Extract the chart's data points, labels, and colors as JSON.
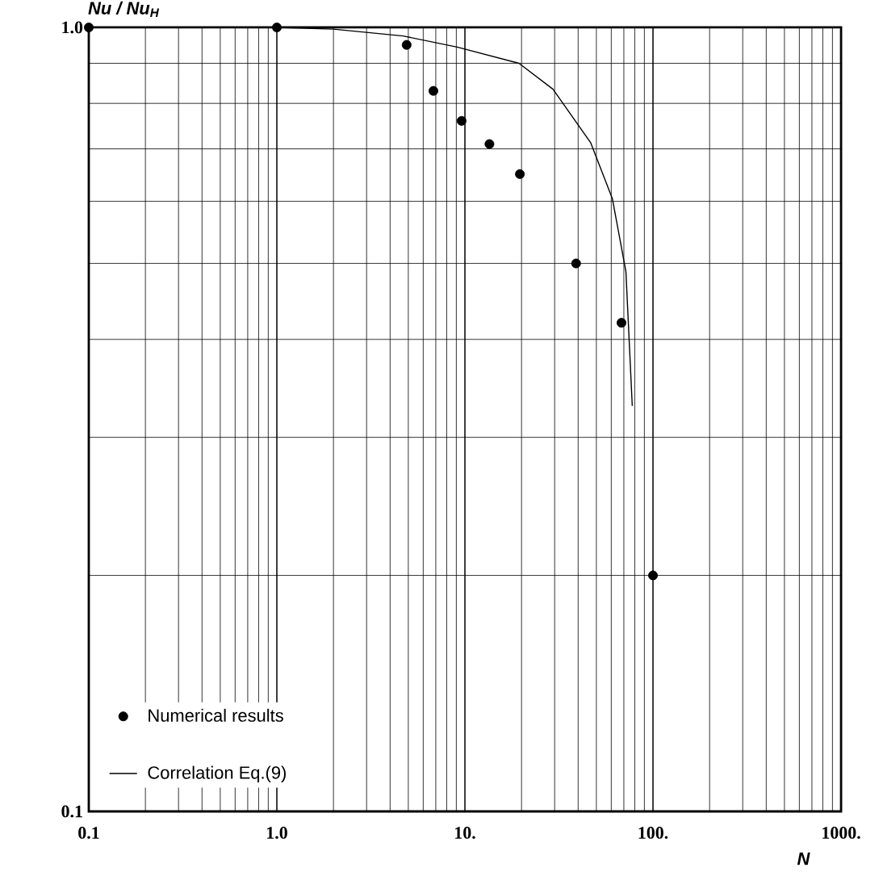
{
  "chart_data": {
    "type": "scatter",
    "xlabel": "N",
    "ylabel": "Nu / Nu$_{H}$",
    "log": "xy",
    "grid": true,
    "legend": "bottom left",
    "xlim": [
      0.1,
      1000
    ],
    "ylim": [
      0.1,
      1.0
    ],
    "xticks": [
      0.1,
      {
        "value": 1,
        "label": "1.0"
      },
      {
        "value": 10,
        "label": "10."
      },
      {
        "value": 100,
        "label": "100."
      },
      {
        "value": 1000,
        "label": "1000."
      }
    ],
    "yticks": [
      0.1,
      {
        "value": 1,
        "label": "1.0"
      }
    ],
    "series": [
      {
        "name": "Numerical results",
        "marker": "circle",
        "color": "#000000",
        "x": [
          0.1,
          1.0,
          4.9,
          6.8,
          9.6,
          13.5,
          19.6,
          39,
          68,
          100
        ],
        "values": [
          1.0,
          1.0,
          0.95,
          0.83,
          0.76,
          0.71,
          0.65,
          0.5,
          0.42,
          0.2
        ]
      },
      {
        "name": "Correlation Eq.(9)",
        "type": "line",
        "marker": "none",
        "color": "#000000",
        "x": [
          0.1,
          1.0,
          2.0,
          4.7,
          9.1,
          19.4,
          29.4,
          46.6,
          60.8,
          71.8,
          77.6
        ],
        "values": [
          1.0,
          1.0,
          0.995,
          0.975,
          0.944,
          0.9,
          0.834,
          0.713,
          0.605,
          0.488,
          0.329
        ]
      }
    ]
  }
}
